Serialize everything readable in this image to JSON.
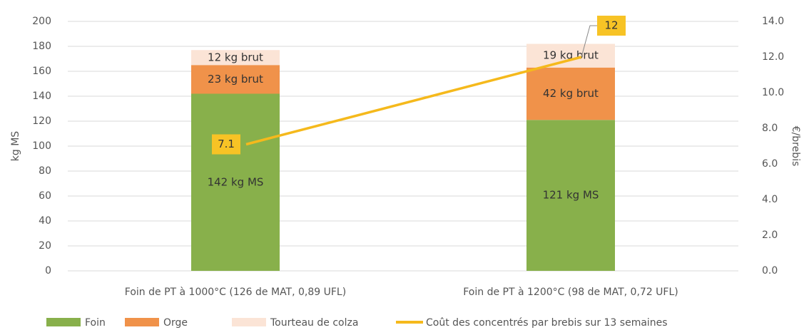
{
  "chart_data": {
    "type": "bar-line",
    "categories": [
      "Foin de PT à 1000°C (126 de MAT,  0,89 UFL)",
      "Foin de PT à 1200°C (98 de MAT, 0,72 UFL)"
    ],
    "series": [
      {
        "name": "Foin",
        "color": "#88b04b",
        "values": [
          142,
          121
        ],
        "value_labels": [
          "142 kg MS",
          "121 kg MS"
        ]
      },
      {
        "name": "Orge",
        "color": "#f0924a",
        "values": [
          23,
          42
        ],
        "value_labels": [
          "23 kg brut",
          "42 kg brut"
        ]
      },
      {
        "name": "Tourteau de colza",
        "color": "#fbe4d6",
        "values": [
          12,
          19
        ],
        "value_labels": [
          "12 kg brut",
          "19 kg brut"
        ]
      },
      {
        "name": "Coût des concentrés par brebis sur 13 semaines",
        "color": "#f5b91c",
        "axis": "y2",
        "type": "line",
        "values": [
          7.1,
          12
        ]
      }
    ],
    "ylabel": "kg MS",
    "y2label": "€/brebis",
    "ylim": [
      0,
      200
    ],
    "yticks": [
      0,
      20,
      40,
      60,
      80,
      100,
      120,
      140,
      160,
      180,
      200
    ],
    "y2lim": [
      0,
      14
    ],
    "y2ticks": [
      {
        "value": 0,
        "label": "0.0"
      },
      {
        "value": 2,
        "label": "2.0"
      },
      {
        "value": 4,
        "label": "4.0"
      },
      {
        "value": 6,
        "label": "6.0"
      },
      {
        "value": 8,
        "label": "8.0"
      },
      {
        "value": 10,
        "label": "10.0"
      },
      {
        "value": 12,
        "label": "12.0"
      },
      {
        "value": 14,
        "label": "14.0"
      }
    ],
    "grid": true,
    "legend": "bottom"
  }
}
